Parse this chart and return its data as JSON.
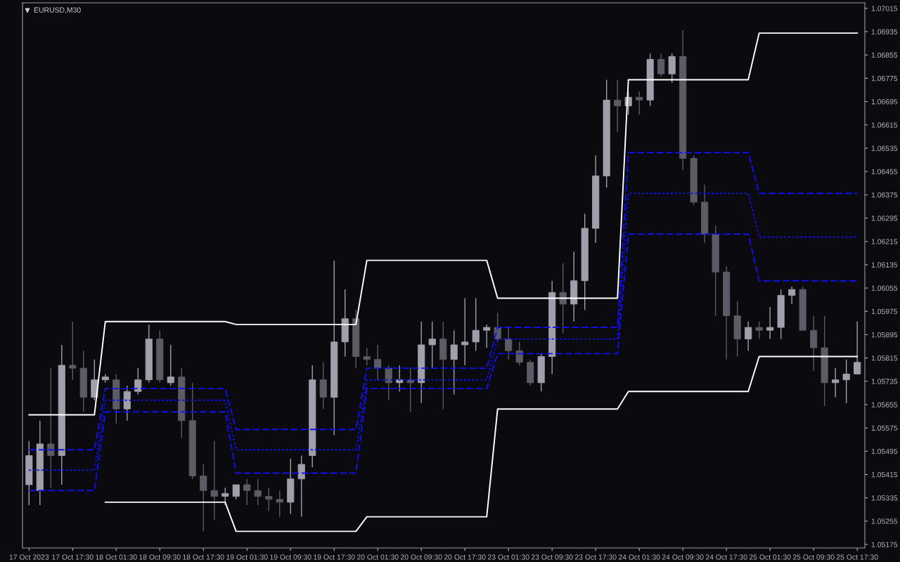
{
  "chart_data": {
    "type": "candlestick",
    "title": "EURUSD,M30",
    "categories": [
      "17 Oct 2023",
      null,
      null,
      null,
      "17 Oct 17:30",
      null,
      null,
      null,
      "18 Oct 01:30",
      null,
      null,
      null,
      "18 Oct 09:30",
      null,
      null,
      null,
      "18 Oct 17:30",
      null,
      null,
      null,
      "19 Oct 01:30",
      null,
      null,
      null,
      "19 Oct 09:30",
      null,
      null,
      null,
      "19 Oct 17:30",
      null,
      null,
      null,
      "20 Oct 01:30",
      null,
      null,
      null,
      "20 Oct 09:30",
      null,
      null,
      null,
      "20 Oct 17:30",
      null,
      null,
      null,
      "23 Oct 01:30",
      null,
      null,
      null,
      "23 Oct 09:30",
      null,
      null,
      null,
      "23 Oct 17:30",
      null,
      null,
      null,
      "24 Oct 01:30",
      null,
      null,
      null,
      "24 Oct 09:30",
      null,
      null,
      null,
      "24 Oct 17:30",
      null,
      null,
      null,
      "25 Oct 01:30",
      null,
      null,
      null,
      "25 Oct 09:30",
      null,
      null,
      null,
      "25 Oct 17:30"
    ],
    "ylim": [
      1.05163,
      1.07034
    ],
    "yticks": [
      1.05175,
      1.05255,
      1.05335,
      1.05415,
      1.05495,
      1.05575,
      1.05655,
      1.05735,
      1.05815,
      1.05895,
      1.05975,
      1.06055,
      1.06135,
      1.06215,
      1.06295,
      1.06375,
      1.06455,
      1.06535,
      1.06615,
      1.06695,
      1.06775,
      1.06855,
      1.06935,
      1.07015
    ],
    "grid": false,
    "ohlc": [
      [
        1.0538,
        1.0553,
        1.0531,
        1.0548
      ],
      [
        1.0536,
        1.056,
        1.0531,
        1.0552
      ],
      [
        1.0552,
        1.0578,
        1.0537,
        1.0548
      ],
      [
        1.0548,
        1.0586,
        1.0538,
        1.0579
      ],
      [
        1.0579,
        1.0594,
        1.0574,
        1.0578
      ],
      [
        1.0578,
        1.0584,
        1.0563,
        1.0568
      ],
      [
        1.0568,
        1.0581,
        1.0567,
        1.0574
      ],
      [
        1.0574,
        1.0576,
        1.0573,
        1.0575
      ],
      [
        1.0574,
        1.0576,
        1.0559,
        1.0564
      ],
      [
        1.0564,
        1.0572,
        1.056,
        1.057
      ],
      [
        1.057,
        1.0578,
        1.0569,
        1.0574
      ],
      [
        1.0574,
        1.0593,
        1.0573,
        1.0588
      ],
      [
        1.0588,
        1.0591,
        1.0573,
        1.0574
      ],
      [
        1.0573,
        1.0586,
        1.0572,
        1.0575
      ],
      [
        1.0575,
        1.0578,
        1.0554,
        1.056
      ],
      [
        1.056,
        1.0573,
        1.054,
        1.0541
      ],
      [
        1.0541,
        1.0545,
        1.0522,
        1.0536
      ],
      [
        1.0536,
        1.0553,
        1.0526,
        1.0534
      ],
      [
        1.0534,
        1.0537,
        1.0531,
        1.0535
      ],
      [
        1.0534,
        1.0538,
        1.0533,
        1.0538
      ],
      [
        1.0538,
        1.054,
        1.0531,
        1.0536
      ],
      [
        1.0536,
        1.054,
        1.0531,
        1.0534
      ],
      [
        1.0534,
        1.0537,
        1.0529,
        1.0533
      ],
      [
        1.0533,
        1.0536,
        1.0527,
        1.0532
      ],
      [
        1.0532,
        1.0547,
        1.0528,
        1.054
      ],
      [
        1.054,
        1.0548,
        1.0527,
        1.0545
      ],
      [
        1.0548,
        1.0579,
        1.0544,
        1.0574
      ],
      [
        1.0574,
        1.058,
        1.0564,
        1.0568
      ],
      [
        1.0568,
        1.0615,
        1.0555,
        1.0587
      ],
      [
        1.0587,
        1.0605,
        1.0582,
        1.0595
      ],
      [
        1.0595,
        1.0598,
        1.0578,
        1.0582
      ],
      [
        1.0582,
        1.0585,
        1.0579,
        1.0581
      ],
      [
        1.0581,
        1.0586,
        1.0574,
        1.0578
      ],
      [
        1.0578,
        1.0579,
        1.0567,
        1.0573
      ],
      [
        1.0573,
        1.0579,
        1.057,
        1.0574
      ],
      [
        1.0574,
        1.0578,
        1.0563,
        1.0573
      ],
      [
        1.0573,
        1.0594,
        1.0566,
        1.0586
      ],
      [
        1.0586,
        1.0594,
        1.0578,
        1.0588
      ],
      [
        1.0588,
        1.0594,
        1.0564,
        1.0581
      ],
      [
        1.0581,
        1.0591,
        1.0569,
        1.0586
      ],
      [
        1.0586,
        1.0602,
        1.0579,
        1.0587
      ],
      [
        1.0587,
        1.0602,
        1.0584,
        1.0591
      ],
      [
        1.0591,
        1.0593,
        1.0585,
        1.0592
      ],
      [
        1.0592,
        1.0597,
        1.0587,
        1.0588
      ],
      [
        1.0588,
        1.0592,
        1.0581,
        1.0584
      ],
      [
        1.0584,
        1.0587,
        1.0579,
        1.058
      ],
      [
        1.058,
        1.0581,
        1.0572,
        1.0573
      ],
      [
        1.0573,
        1.0583,
        1.057,
        1.0582
      ],
      [
        1.0582,
        1.0608,
        1.0576,
        1.0604
      ],
      [
        1.0604,
        1.0614,
        1.059,
        1.06
      ],
      [
        1.06,
        1.0618,
        1.0594,
        1.0608
      ],
      [
        1.0608,
        1.0631,
        1.0598,
        1.0626
      ],
      [
        1.0626,
        1.0651,
        1.0621,
        1.0644
      ],
      [
        1.0644,
        1.0677,
        1.064,
        1.067
      ],
      [
        1.067,
        1.0677,
        1.0659,
        1.0668
      ],
      [
        1.0668,
        1.0673,
        1.0665,
        1.0671
      ],
      [
        1.0671,
        1.0673,
        1.0665,
        1.067
      ],
      [
        1.067,
        1.0686,
        1.0668,
        1.0684
      ],
      [
        1.0684,
        1.0686,
        1.0678,
        1.0679
      ],
      [
        1.0679,
        1.0686,
        1.0676,
        1.0685
      ],
      [
        1.0685,
        1.0694,
        1.0646,
        1.065
      ],
      [
        1.065,
        1.0651,
        1.0634,
        1.0635
      ],
      [
        1.0635,
        1.0641,
        1.0621,
        1.0624
      ],
      [
        1.0624,
        1.0627,
        1.0596,
        1.0611
      ],
      [
        1.0611,
        1.0613,
        1.0581,
        1.0596
      ],
      [
        1.0596,
        1.0601,
        1.0582,
        1.0588
      ],
      [
        1.0588,
        1.0594,
        1.0584,
        1.0592
      ],
      [
        1.0592,
        1.0594,
        1.0588,
        1.0591
      ],
      [
        1.0591,
        1.0599,
        1.0588,
        1.0592
      ],
      [
        1.0592,
        1.0605,
        1.0588,
        1.0603
      ],
      [
        1.0603,
        1.0606,
        1.06,
        1.0605
      ],
      [
        1.0605,
        1.0606,
        1.0591,
        1.0591
      ],
      [
        1.0591,
        1.0596,
        1.0577,
        1.0585
      ],
      [
        1.0585,
        1.0596,
        1.0565,
        1.0573
      ],
      [
        1.0573,
        1.0578,
        1.0568,
        1.0574
      ],
      [
        1.0574,
        1.0581,
        1.0566,
        1.0576
      ],
      [
        1.0576,
        1.0594,
        1.0576,
        1.058
      ]
    ],
    "colors": [
      "#a0a0ac",
      "#a0a0ac",
      "#5c5c66",
      "#a0a0ac",
      "#5c5c66",
      "#5c5c66",
      "#a0a0ac",
      "#a0a0ac",
      "#5c5c66",
      "#a0a0ac",
      "#a0a0ac",
      "#a0a0ac",
      "#5c5c66",
      "#a0a0ac",
      "#5c5c66",
      "#5c5c66",
      "#5c5c66",
      "#5c5c66",
      "#a0a0ac",
      "#a0a0ac",
      "#5c5c66",
      "#5c5c66",
      "#5c5c66",
      "#5c5c66",
      "#a0a0ac",
      "#a0a0ac",
      "#a0a0ac",
      "#5c5c66",
      "#a0a0ac",
      "#a0a0ac",
      "#5c5c66",
      "#5c5c66",
      "#5c5c66",
      "#5c5c66",
      "#a0a0ac",
      "#5c5c66",
      "#a0a0ac",
      "#a0a0ac",
      "#5c5c66",
      "#a0a0ac",
      "#a0a0ac",
      "#a0a0ac",
      "#a0a0ac",
      "#5c5c66",
      "#5c5c66",
      "#5c5c66",
      "#5c5c66",
      "#a0a0ac",
      "#a0a0ac",
      "#5c5c66",
      "#a0a0ac",
      "#a0a0ac",
      "#a0a0ac",
      "#a0a0ac",
      "#5c5c66",
      "#a0a0ac",
      "#5c5c66",
      "#a0a0ac",
      "#5c5c66",
      "#a0a0ac",
      "#5c5c66",
      "#5c5c66",
      "#5c5c66",
      "#5c5c66",
      "#5c5c66",
      "#5c5c66",
      "#a0a0ac",
      "#5c5c66",
      "#a0a0ac",
      "#a0a0ac",
      "#a0a0ac",
      "#5c5c66",
      "#5c5c66",
      "#5c5c66",
      "#a0a0ac",
      "#a0a0ac",
      "#a0a0ac"
    ],
    "series": [
      {
        "type": "line",
        "color": "#ffffff",
        "line_style": "solid",
        "values": [
          1.0562,
          1.0562,
          1.0562,
          1.0562,
          1.0562,
          1.0562,
          1.0562,
          1.0594,
          1.0594,
          1.0594,
          1.0594,
          1.0594,
          1.0594,
          1.0594,
          1.0594,
          1.0594,
          1.0594,
          1.0594,
          1.0594,
          1.0593,
          1.0593,
          1.0593,
          1.0593,
          1.0593,
          1.0593,
          1.0593,
          1.0593,
          1.0593,
          1.0593,
          1.0593,
          1.0593,
          1.0615,
          1.0615,
          1.0615,
          1.0615,
          1.0615,
          1.0615,
          1.0615,
          1.0615,
          1.0615,
          1.0615,
          1.0615,
          1.0615,
          1.0602,
          1.0602,
          1.0602,
          1.0602,
          1.0602,
          1.0602,
          1.0602,
          1.0602,
          1.0602,
          1.0602,
          1.0602,
          1.0602,
          1.0677,
          1.0677,
          1.0677,
          1.0677,
          1.0677,
          1.0677,
          1.0677,
          1.0677,
          1.0677,
          1.0677,
          1.0677,
          1.0677,
          1.0693,
          1.0693,
          1.0693,
          1.0693,
          1.0693,
          1.0693,
          1.0693,
          1.0693,
          1.0693,
          1.0693
        ]
      },
      {
        "type": "line",
        "color": "#ffffff",
        "line_style": "solid",
        "values": [
          null,
          null,
          null,
          null,
          null,
          null,
          null,
          1.0532,
          1.0532,
          1.0532,
          1.0532,
          1.0532,
          1.0532,
          1.0532,
          1.0532,
          1.0532,
          1.0532,
          1.0532,
          1.0532,
          1.0522,
          1.0522,
          1.0522,
          1.0522,
          1.0522,
          1.0522,
          1.0522,
          1.0522,
          1.0522,
          1.0522,
          1.0522,
          1.0522,
          1.0527,
          1.0527,
          1.0527,
          1.0527,
          1.0527,
          1.0527,
          1.0527,
          1.0527,
          1.0527,
          1.0527,
          1.0527,
          1.0527,
          1.0564,
          1.0564,
          1.0564,
          1.0564,
          1.0564,
          1.0564,
          1.0564,
          1.0564,
          1.0564,
          1.0564,
          1.0564,
          1.0564,
          1.057,
          1.057,
          1.057,
          1.057,
          1.057,
          1.057,
          1.057,
          1.057,
          1.057,
          1.057,
          1.057,
          1.057,
          1.0582,
          1.0582,
          1.0582,
          1.0582,
          1.0582,
          1.0582,
          1.0582,
          1.0582,
          1.0582,
          1.0582
        ]
      },
      {
        "type": "line",
        "color": "#1010ee",
        "line_style": "dashed",
        "values": [
          1.055,
          1.055,
          1.055,
          1.055,
          1.055,
          1.055,
          1.055,
          1.0571,
          1.0571,
          1.0571,
          1.0571,
          1.0571,
          1.0571,
          1.0571,
          1.0571,
          1.0571,
          1.0571,
          1.0571,
          1.0571,
          1.0557,
          1.0557,
          1.0557,
          1.0557,
          1.0557,
          1.0557,
          1.0557,
          1.0557,
          1.0557,
          1.0557,
          1.0557,
          1.0557,
          1.0578,
          1.0578,
          1.0578,
          1.0578,
          1.0578,
          1.0578,
          1.0578,
          1.0578,
          1.0578,
          1.0578,
          1.0578,
          1.0578,
          1.0592,
          1.0592,
          1.0592,
          1.0592,
          1.0592,
          1.0592,
          1.0592,
          1.0592,
          1.0592,
          1.0592,
          1.0592,
          1.0592,
          1.0652,
          1.0652,
          1.0652,
          1.0652,
          1.0652,
          1.0652,
          1.0652,
          1.0652,
          1.0652,
          1.0652,
          1.0652,
          1.0652,
          1.0638,
          1.0638,
          1.0638,
          1.0638,
          1.0638,
          1.0638,
          1.0638,
          1.0638,
          1.0638,
          1.0638
        ]
      },
      {
        "type": "line",
        "color": "#1010ee",
        "line_style": "dotted",
        "values": [
          1.0543,
          1.0543,
          1.0543,
          1.0543,
          1.0543,
          1.0543,
          1.0543,
          1.0567,
          1.0567,
          1.0567,
          1.0567,
          1.0567,
          1.0567,
          1.0567,
          1.0567,
          1.0567,
          1.0567,
          1.0567,
          1.0567,
          1.055,
          1.055,
          1.055,
          1.055,
          1.055,
          1.055,
          1.055,
          1.055,
          1.055,
          1.055,
          1.055,
          1.055,
          1.0574,
          1.0574,
          1.0574,
          1.0574,
          1.0574,
          1.0574,
          1.0574,
          1.0574,
          1.0574,
          1.0574,
          1.0574,
          1.0574,
          1.0588,
          1.0588,
          1.0588,
          1.0588,
          1.0588,
          1.0588,
          1.0588,
          1.0588,
          1.0588,
          1.0588,
          1.0588,
          1.0588,
          1.0638,
          1.0638,
          1.0638,
          1.0638,
          1.0638,
          1.0638,
          1.0638,
          1.0638,
          1.0638,
          1.0638,
          1.0638,
          1.0638,
          1.0623,
          1.0623,
          1.0623,
          1.0623,
          1.0623,
          1.0623,
          1.0623,
          1.0623,
          1.0623,
          1.0623
        ]
      },
      {
        "type": "line",
        "color": "#1010ee",
        "line_style": "dashed",
        "values": [
          1.0536,
          1.0536,
          1.0536,
          1.0536,
          1.0536,
          1.0536,
          1.0536,
          1.0563,
          1.0563,
          1.0563,
          1.0563,
          1.0563,
          1.0563,
          1.0563,
          1.0563,
          1.0563,
          1.0563,
          1.0563,
          1.0563,
          1.0542,
          1.0542,
          1.0542,
          1.0542,
          1.0542,
          1.0542,
          1.0542,
          1.0542,
          1.0542,
          1.0542,
          1.0542,
          1.0542,
          1.0571,
          1.0571,
          1.0571,
          1.0571,
          1.0571,
          1.0571,
          1.0571,
          1.0571,
          1.0571,
          1.0571,
          1.0571,
          1.0571,
          1.0583,
          1.0583,
          1.0583,
          1.0583,
          1.0583,
          1.0583,
          1.0583,
          1.0583,
          1.0583,
          1.0583,
          1.0583,
          1.0583,
          1.0624,
          1.0624,
          1.0624,
          1.0624,
          1.0624,
          1.0624,
          1.0624,
          1.0624,
          1.0624,
          1.0624,
          1.0624,
          1.0624,
          1.0608,
          1.0608,
          1.0608,
          1.0608,
          1.0608,
          1.0608,
          1.0608,
          1.0608,
          1.0608,
          1.0608
        ]
      }
    ]
  }
}
